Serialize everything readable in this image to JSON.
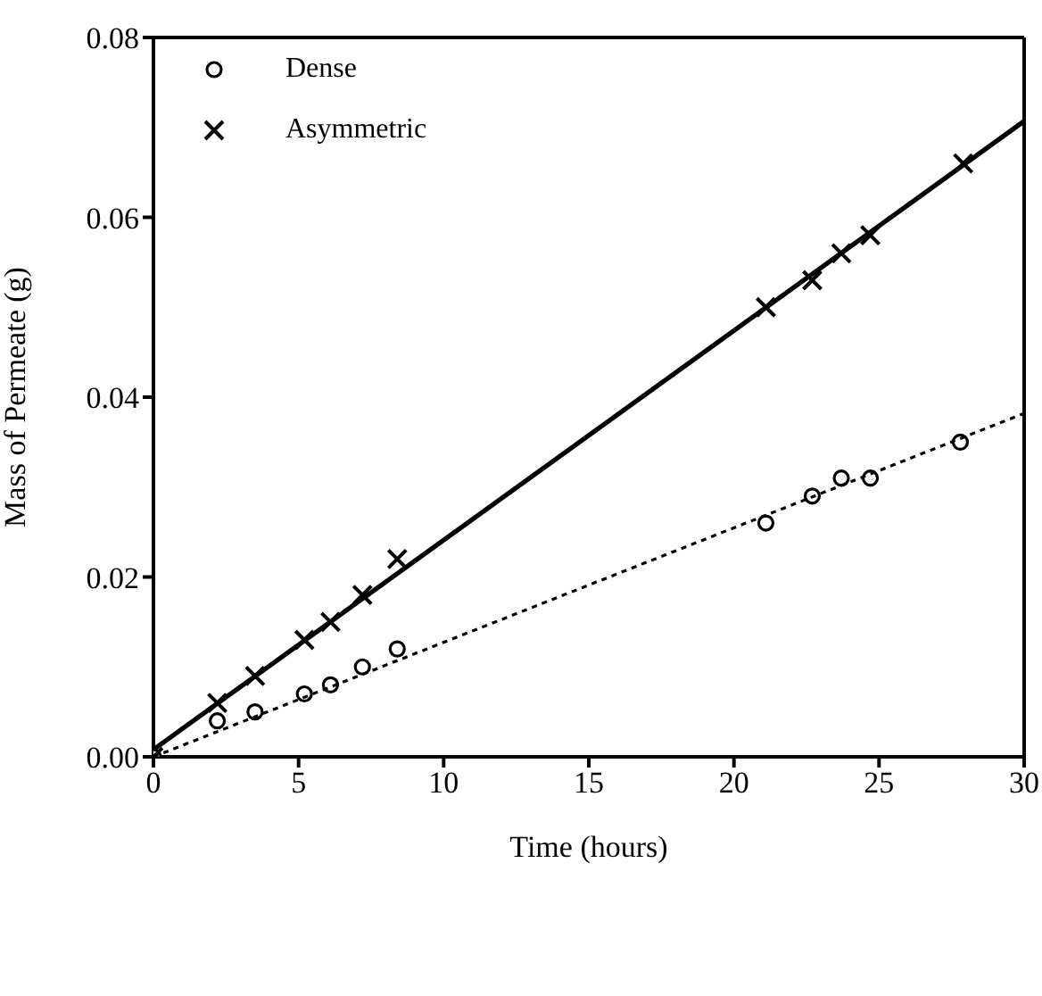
{
  "chart_data": {
    "type": "scatter",
    "xlabel": "Time (hours)",
    "ylabel": "Mass of Permeate (g)",
    "xlim": [
      0,
      30
    ],
    "xticks": [
      0,
      5,
      10,
      15,
      20,
      25,
      30
    ],
    "ylim": [
      0,
      0.08
    ],
    "yticks": [
      {
        "value": 0,
        "label": "0.00"
      },
      {
        "value": 0.02,
        "label": "0.02"
      },
      {
        "value": 0.04,
        "label": "0.04"
      },
      {
        "value": 0.06,
        "label": "0.06"
      },
      {
        "value": 0.08,
        "label": "0.08"
      }
    ],
    "legend": "top left",
    "series": [
      {
        "name": "Dense",
        "marker": "circle",
        "color": "#000000",
        "x": [
          0,
          2.2,
          3.5,
          5.2,
          6.1,
          7.2,
          8.4,
          21.1,
          22.7,
          23.7,
          24.7,
          27.8
        ],
        "values": [
          0,
          0.004,
          0.005,
          0.007,
          0.008,
          0.01,
          0.012,
          0.026,
          0.029,
          0.031,
          0.031,
          0.035
        ]
      },
      {
        "name": "Asymmetric",
        "marker": "cross",
        "color": "#000000",
        "x": [
          0,
          2.2,
          3.5,
          5.2,
          6.1,
          7.2,
          8.4,
          21.1,
          22.7,
          23.7,
          24.7,
          27.9
        ],
        "values": [
          0,
          0.006,
          0.009,
          0.013,
          0.015,
          0.018,
          0.022,
          0.05,
          0.053,
          0.056,
          0.058,
          0.066
        ]
      },
      {
        "type": "line",
        "line_style": "dotted",
        "marker": "none",
        "color": "#000000",
        "x": [
          0,
          30
        ],
        "values": [
          0,
          0.0382
        ]
      },
      {
        "type": "line",
        "line_style": "solid",
        "marker": "none",
        "color": "#000000",
        "x": [
          0,
          30
        ],
        "values": [
          0.0008,
          0.0707
        ]
      }
    ]
  }
}
